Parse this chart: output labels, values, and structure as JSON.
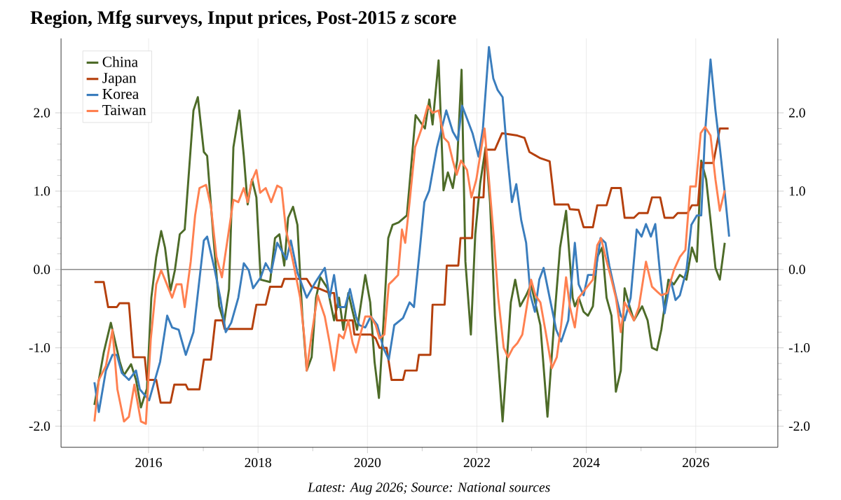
{
  "chart_data": {
    "type": "line",
    "title": "Region, Mfg surveys, Input prices, Post-2015 z score",
    "annotations": [
      "Latest: Aug 2026; Source: National sources"
    ],
    "xlim": [
      2014.4,
      2027.5
    ],
    "xticks": [
      2016,
      2018,
      2020,
      2022,
      2024,
      2026
    ],
    "ylim": [
      -2.27,
      2.95
    ],
    "yticks": [
      {
        "value": -2,
        "label": "-2.0"
      },
      {
        "value": -1,
        "label": "-1.0"
      },
      {
        "value": 0,
        "label": "0.0"
      },
      {
        "value": 1,
        "label": "1.0"
      },
      {
        "value": 2,
        "label": "2.0"
      }
    ],
    "y2lim": [
      -2.27,
      2.95
    ],
    "y2ticks": [
      {
        "value": -2,
        "label": "-2.0"
      },
      {
        "value": -1,
        "label": "-1.0"
      },
      {
        "value": 0,
        "label": "0.0"
      },
      {
        "value": 1,
        "label": "1.0"
      },
      {
        "value": 2,
        "label": "2.0"
      }
    ],
    "grid": true,
    "legend": "top left",
    "ref_lines": [
      {
        "axis": "y",
        "value": 0,
        "color": "#8c8c8c"
      }
    ],
    "series": [
      {
        "name": "China",
        "color": "#4d6b28",
        "x": [
          2015.01,
          2015.18,
          2015.31,
          2015.47,
          2015.55,
          2015.68,
          2015.77,
          2015.86,
          2015.97,
          2016.05,
          2016.14,
          2016.23,
          2016.3,
          2016.4,
          2016.48,
          2016.57,
          2016.66,
          2016.82,
          2016.9,
          2017.01,
          2017.07,
          2017.18,
          2017.29,
          2017.38,
          2017.47,
          2017.55,
          2017.66,
          2017.74,
          2017.81,
          2017.89,
          2017.97,
          2018.05,
          2018.22,
          2018.31,
          2018.39,
          2018.48,
          2018.55,
          2018.64,
          2018.72,
          2018.81,
          2018.89,
          2018.98,
          2019.06,
          2019.14,
          2019.27,
          2019.39,
          2019.48,
          2019.56,
          2019.65,
          2019.73,
          2019.81,
          2019.96,
          2020.05,
          2020.13,
          2020.21,
          2020.29,
          2020.38,
          2020.46,
          2020.57,
          2020.72,
          2020.88,
          2021.05,
          2021.13,
          2021.19,
          2021.3,
          2021.39,
          2021.47,
          2021.56,
          2021.64,
          2021.72,
          2021.79,
          2021.89,
          2021.97,
          2022.06,
          2022.16,
          2022.24,
          2022.33,
          2022.47,
          2022.62,
          2022.7,
          2022.79,
          2022.9,
          2022.99,
          2023.16,
          2023.29,
          2023.42,
          2023.52,
          2023.63,
          2023.75,
          2023.79,
          2023.86,
          2023.95,
          2024.03,
          2024.12,
          2024.2,
          2024.29,
          2024.37,
          2024.46,
          2024.54,
          2024.63,
          2024.7,
          2024.79,
          2024.87,
          2025.02,
          2025.12,
          2025.2,
          2025.29,
          2025.37,
          2025.5,
          2025.6,
          2025.71,
          2025.83,
          2025.93,
          2026.02,
          2026.1,
          2026.19,
          2026.27,
          2026.36,
          2026.44,
          2026.53
        ],
        "values": [
          -1.73,
          -1.06,
          -0.68,
          -1.17,
          -1.35,
          -1.21,
          -1.41,
          -1.76,
          -1.52,
          -0.36,
          0.16,
          0.49,
          0.28,
          -0.27,
          -0.01,
          0.45,
          0.51,
          2.03,
          2.2,
          1.5,
          1.45,
          0.45,
          -0.47,
          -0.68,
          -0.25,
          1.56,
          2.03,
          1.45,
          0.83,
          1.15,
          0.92,
          -0.13,
          -0.16,
          0.4,
          0.45,
          0.05,
          0.66,
          0.8,
          0.57,
          -0.59,
          -1.29,
          -1.12,
          -0.36,
          -0.1,
          -0.24,
          -0.65,
          -0.36,
          -0.77,
          -0.3,
          -0.54,
          -0.77,
          -0.07,
          -0.42,
          -1.18,
          -1.64,
          -0.71,
          0.4,
          0.57,
          0.6,
          0.69,
          1.97,
          1.8,
          2.17,
          1.85,
          2.67,
          1.01,
          1.24,
          1.04,
          1.39,
          2.55,
          0.1,
          -0.83,
          0.45,
          1.1,
          1.56,
          0.86,
          -0.59,
          -1.94,
          -0.42,
          -0.13,
          -0.47,
          -0.33,
          -0.19,
          -0.71,
          -1.88,
          -0.59,
          0.28,
          0.75,
          -0.36,
          -0.47,
          -0.36,
          -0.54,
          -0.59,
          -0.47,
          0.16,
          0.28,
          -0.36,
          -0.59,
          -1.56,
          -1.29,
          -0.24,
          -0.47,
          -0.65,
          -0.47,
          -0.65,
          -1.0,
          -1.03,
          -0.77,
          -0.13,
          -0.19,
          -0.07,
          -0.13,
          0.28,
          0.1,
          1.39,
          1.15,
          0.63,
          0.02,
          -0.13,
          0.34
        ]
      },
      {
        "name": "Japan",
        "color": "#b5400d",
        "x": [
          2015.01,
          2015.18,
          2015.26,
          2015.42,
          2015.47,
          2015.64,
          2015.72,
          2015.93,
          2015.97,
          2016.14,
          2016.22,
          2016.4,
          2016.47,
          2016.68,
          2016.72,
          2016.93,
          2017.01,
          2017.14,
          2017.22,
          2017.35,
          2017.39,
          2017.89,
          2017.97,
          2018.14,
          2018.22,
          2018.43,
          2018.48,
          2018.89,
          2018.98,
          2019.14,
          2019.31,
          2019.39,
          2019.44,
          2019.73,
          2019.76,
          2020.06,
          2020.15,
          2020.22,
          2020.35,
          2020.44,
          2020.65,
          2020.69,
          2020.9,
          2020.94,
          2021.15,
          2021.19,
          2021.41,
          2021.45,
          2021.66,
          2021.7,
          2021.91,
          2021.95,
          2022.12,
          2022.16,
          2022.33,
          2022.46,
          2022.74,
          2022.87,
          2022.96,
          2023.16,
          2023.33,
          2023.42,
          2023.67,
          2023.7,
          2023.86,
          2023.95,
          2024.12,
          2024.2,
          2024.37,
          2024.46,
          2024.63,
          2024.7,
          2024.87,
          2024.96,
          2025.12,
          2025.2,
          2025.35,
          2025.43,
          2025.59,
          2025.67,
          2025.85,
          2025.93,
          2026.04,
          2026.1,
          2026.32,
          2026.44,
          2026.6
        ],
        "values": [
          -0.16,
          -0.16,
          -0.48,
          -0.48,
          -0.43,
          -0.43,
          -1.12,
          -1.12,
          -1.41,
          -1.41,
          -1.7,
          -1.7,
          -1.47,
          -1.47,
          -1.53,
          -1.53,
          -1.15,
          -1.15,
          -0.65,
          -0.65,
          -0.76,
          -0.76,
          -0.45,
          -0.45,
          -0.22,
          -0.22,
          -0.12,
          -0.12,
          -0.22,
          -0.25,
          -0.3,
          -0.3,
          -0.65,
          -0.65,
          -0.83,
          -0.83,
          -0.88,
          -1.0,
          -1.0,
          -1.41,
          -1.41,
          -1.29,
          -1.29,
          -1.09,
          -1.09,
          -0.45,
          -0.45,
          0.05,
          0.05,
          0.4,
          0.4,
          0.92,
          0.92,
          1.53,
          1.53,
          1.74,
          1.71,
          1.68,
          1.5,
          1.42,
          1.38,
          0.83,
          0.83,
          0.77,
          0.76,
          0.54,
          0.54,
          0.82,
          0.82,
          1.04,
          1.04,
          0.66,
          0.66,
          0.72,
          0.72,
          0.92,
          0.92,
          0.66,
          0.66,
          0.72,
          0.72,
          0.82,
          0.82,
          1.36,
          1.36,
          1.8,
          1.8
        ]
      },
      {
        "name": "Korea",
        "color": "#3a7dbd",
        "x": [
          2015.01,
          2015.09,
          2015.22,
          2015.34,
          2015.42,
          2015.51,
          2015.64,
          2015.77,
          2015.84,
          2016.01,
          2016.21,
          2016.34,
          2016.43,
          2016.55,
          2016.68,
          2016.82,
          2017.01,
          2017.07,
          2017.21,
          2017.31,
          2017.41,
          2017.51,
          2017.64,
          2017.74,
          2017.83,
          2017.91,
          2018.05,
          2018.14,
          2018.24,
          2018.35,
          2018.52,
          2018.6,
          2018.72,
          2018.89,
          2019.05,
          2019.22,
          2019.31,
          2019.39,
          2019.47,
          2019.59,
          2019.68,
          2019.79,
          2019.85,
          2019.96,
          2020.06,
          2020.18,
          2020.29,
          2020.39,
          2020.49,
          2020.65,
          2020.77,
          2020.85,
          2020.96,
          2021.04,
          2021.13,
          2021.27,
          2021.44,
          2021.56,
          2021.65,
          2021.73,
          2021.92,
          2022.03,
          2022.11,
          2022.22,
          2022.3,
          2022.38,
          2022.47,
          2022.55,
          2022.64,
          2022.72,
          2022.81,
          2022.9,
          2022.98,
          2023.06,
          2023.14,
          2023.22,
          2023.33,
          2023.45,
          2023.54,
          2023.67,
          2023.79,
          2023.86,
          2023.95,
          2024.03,
          2024.16,
          2024.26,
          2024.35,
          2024.42,
          2024.54,
          2024.63,
          2024.7,
          2024.81,
          2024.92,
          2025.01,
          2025.09,
          2025.18,
          2025.26,
          2025.35,
          2025.43,
          2025.54,
          2025.63,
          2025.71,
          2025.83,
          2025.92,
          2026.02,
          2026.1,
          2026.17,
          2026.27,
          2026.36,
          2026.44,
          2026.53,
          2026.61
        ],
        "values": [
          -1.44,
          -1.82,
          -1.29,
          -1.09,
          -1.09,
          -1.32,
          -1.41,
          -1.29,
          -1.53,
          -1.67,
          -1.18,
          -0.59,
          -0.74,
          -0.77,
          -1.09,
          -0.8,
          0.37,
          0.42,
          -0.01,
          -0.36,
          -0.8,
          -0.68,
          -0.36,
          0.08,
          -0.01,
          -0.24,
          -0.1,
          0.08,
          -0.04,
          0.34,
          0.13,
          0.37,
          -0.04,
          -0.36,
          -0.16,
          0.02,
          -0.36,
          -0.07,
          -0.48,
          -0.48,
          -0.25,
          -0.6,
          -0.71,
          -0.74,
          -0.6,
          -0.71,
          -1.0,
          -1.15,
          -0.71,
          -0.62,
          -0.42,
          -0.48,
          0.28,
          0.86,
          1.01,
          1.56,
          2.03,
          1.76,
          1.65,
          2.09,
          1.74,
          1.44,
          1.8,
          2.84,
          2.44,
          2.29,
          2.2,
          1.5,
          0.86,
          1.09,
          0.63,
          0.34,
          -0.33,
          -0.54,
          -0.13,
          0.02,
          -0.36,
          -0.77,
          -0.92,
          -0.65,
          0.34,
          -0.19,
          -0.33,
          -0.07,
          -0.07,
          0.4,
          0.34,
          0.05,
          -0.33,
          -0.59,
          -0.65,
          -0.36,
          0.51,
          0.42,
          0.58,
          0.42,
          0.58,
          -0.07,
          -0.56,
          -0.13,
          -0.39,
          -0.33,
          -0.01,
          0.57,
          0.69,
          0.69,
          1.74,
          2.68,
          2.03,
          1.56,
          0.98,
          0.42
        ]
      },
      {
        "name": "Taiwan",
        "color": "#ff8050",
        "x": [
          2015.01,
          2015.09,
          2015.22,
          2015.34,
          2015.43,
          2015.55,
          2015.64,
          2015.74,
          2015.86,
          2015.95,
          2016.04,
          2016.14,
          2016.23,
          2016.3,
          2016.43,
          2016.51,
          2016.6,
          2016.66,
          2016.77,
          2016.85,
          2016.93,
          2017.05,
          2017.14,
          2017.24,
          2017.34,
          2017.47,
          2017.55,
          2017.64,
          2017.74,
          2017.81,
          2017.88,
          2017.97,
          2018.04,
          2018.14,
          2018.24,
          2018.35,
          2018.43,
          2018.51,
          2018.64,
          2018.77,
          2018.85,
          2018.89,
          2018.98,
          2019.09,
          2019.22,
          2019.31,
          2019.39,
          2019.48,
          2019.56,
          2019.65,
          2019.73,
          2019.79,
          2019.87,
          2019.96,
          2020.06,
          2020.15,
          2020.22,
          2020.31,
          2020.39,
          2020.48,
          2020.56,
          2020.63,
          2020.69,
          2020.77,
          2020.87,
          2020.99,
          2021.1,
          2021.19,
          2021.3,
          2021.4,
          2021.48,
          2021.56,
          2021.63,
          2021.71,
          2021.82,
          2021.9,
          2021.99,
          2022.07,
          2022.14,
          2022.22,
          2022.31,
          2022.39,
          2022.49,
          2022.57,
          2022.66,
          2022.74,
          2022.83,
          2022.91,
          2022.99,
          2023.07,
          2023.16,
          2023.25,
          2023.37,
          2023.46,
          2023.54,
          2023.63,
          2023.7,
          2023.79,
          2023.86,
          2023.95,
          2024.12,
          2024.2,
          2024.27,
          2024.35,
          2024.46,
          2024.54,
          2024.63,
          2024.7,
          2024.79,
          2024.87,
          2024.96,
          2025.09,
          2025.2,
          2025.29,
          2025.37,
          2025.48,
          2025.6,
          2025.71,
          2025.81,
          2025.9,
          2026.0,
          2026.09,
          2026.17,
          2026.27,
          2026.36,
          2026.44,
          2026.53
        ],
        "values": [
          -1.94,
          -1.41,
          -1.23,
          -0.77,
          -1.53,
          -1.94,
          -1.88,
          -1.47,
          -1.94,
          -1.97,
          -0.89,
          -0.19,
          -0.01,
          -0.13,
          -0.36,
          -0.19,
          -0.19,
          -0.48,
          0.1,
          0.69,
          1.04,
          1.08,
          0.8,
          0.16,
          -0.1,
          0.51,
          0.89,
          0.86,
          1.04,
          0.86,
          1.12,
          1.27,
          0.98,
          1.04,
          0.86,
          1.07,
          1.04,
          0.51,
          0.1,
          -0.36,
          -0.89,
          -1.29,
          -0.83,
          -0.33,
          -0.6,
          -0.94,
          -1.29,
          -0.83,
          -0.88,
          -0.65,
          -0.94,
          -1.06,
          -0.83,
          -0.6,
          -0.6,
          -0.71,
          -0.88,
          -0.83,
          -0.19,
          -0.13,
          -0.07,
          0.51,
          0.34,
          0.86,
          1.56,
          1.8,
          2.09,
          2.0,
          2.03,
          1.68,
          1.62,
          1.39,
          1.21,
          1.39,
          1.27,
          0.92,
          1.15,
          1.5,
          1.8,
          1.15,
          0.4,
          -0.36,
          -1.0,
          -1.12,
          -1.0,
          -0.94,
          -0.83,
          -0.48,
          -0.13,
          -0.33,
          -0.42,
          -0.77,
          -1.26,
          -1.12,
          -0.71,
          -0.1,
          -0.48,
          -0.74,
          -0.36,
          -0.28,
          -0.13,
          0.31,
          0.4,
          0.16,
          -0.13,
          -0.36,
          -0.8,
          -0.42,
          -0.54,
          -0.65,
          -0.48,
          0.1,
          -0.22,
          -0.28,
          -0.33,
          -0.3,
          -0.01,
          0.16,
          0.25,
          1.06,
          1.06,
          1.74,
          1.82,
          1.71,
          1.15,
          0.75,
          1.01
        ]
      }
    ]
  }
}
